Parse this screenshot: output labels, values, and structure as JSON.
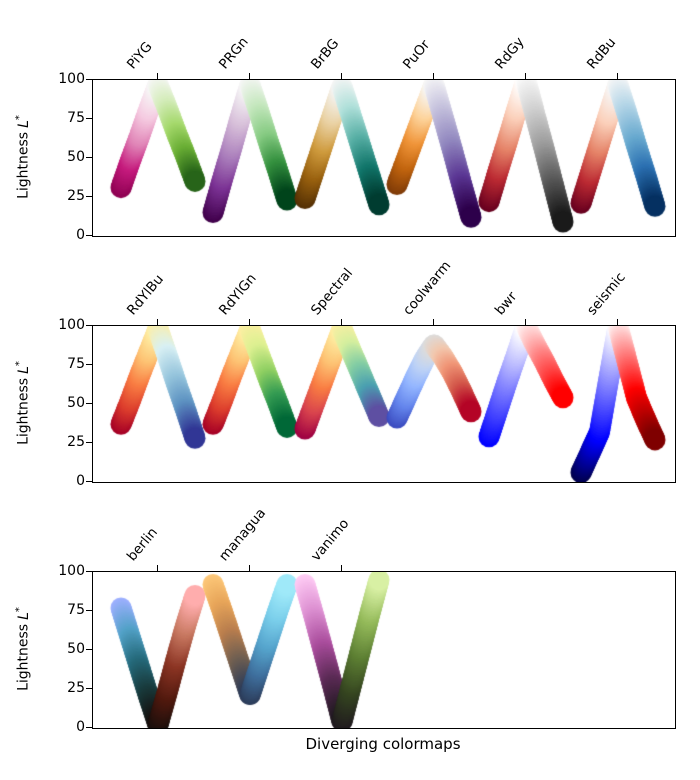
{
  "chart_data": {
    "type": "scatter",
    "title": "",
    "xlabel": "Diverging colormaps",
    "ylabel": "Lightness L*",
    "ylabel_parts": {
      "prefix": "Lightness",
      "symbol": "L",
      "sup": "*"
    },
    "ylim": [
      0,
      100
    ],
    "yticks": [
      0,
      25,
      50,
      75,
      100
    ],
    "grid": false,
    "legend": "none",
    "subplots": [
      {
        "colormaps": [
          {
            "name": "PiYG",
            "lightness_profile": [
              31,
              48,
              64,
              81,
              97,
              82,
              66,
              51,
              35
            ],
            "colors": [
              "#8e0152",
              "#c51b7d",
              "#e084b7",
              "#f5cbe1",
              "#f7f7f7",
              "#d6edbd",
              "#a5d96c",
              "#6aae35",
              "#276419"
            ]
          },
          {
            "name": "PRGn",
            "lightness_profile": [
              15,
              36,
              56,
              77,
              97,
              79,
              60,
              42,
              23
            ],
            "colors": [
              "#40004b",
              "#7b3294",
              "#ab7fbc",
              "#d8c0da",
              "#f7f7f7",
              "#c7e8c0",
              "#88cc84",
              "#35913f",
              "#00441b"
            ]
          },
          {
            "name": "BrBG",
            "lightness_profile": [
              24,
              42,
              60,
              78,
              96,
              77,
              58,
              39,
              20
            ],
            "colors": [
              "#543005",
              "#99610f",
              "#cf9b3e",
              "#ead2a4",
              "#f5f5f5",
              "#b0e0da",
              "#59b0a6",
              "#12766b",
              "#003c30"
            ]
          },
          {
            "name": "PuOr",
            "lightness_profile": [
              33,
              49,
              65,
              81,
              97,
              76,
              55,
              33,
              12
            ],
            "colors": [
              "#7f3b08",
              "#c2650f",
              "#f0953a",
              "#fdd39a",
              "#f7f7f7",
              "#c3bfdc",
              "#9187bf",
              "#5b3794",
              "#2d004b"
            ]
          },
          {
            "name": "RdGy",
            "lightness_profile": [
              22,
              42,
              61,
              81,
              100,
              77,
              55,
              32,
              9
            ],
            "colors": [
              "#67001f",
              "#bb2a33",
              "#e58368",
              "#fbd0ba",
              "#ffffff",
              "#d3d3d3",
              "#a0a0a0",
              "#5c5c5c",
              "#1a1a1a"
            ]
          },
          {
            "name": "RdBu",
            "lightness_profile": [
              21,
              40,
              59,
              78,
              97,
              78,
              58,
              39,
              19
            ],
            "colors": [
              "#67001f",
              "#bb2a33",
              "#e58368",
              "#fbd0ba",
              "#f7f7f7",
              "#b3d5e7",
              "#6aabd0",
              "#2c71b2",
              "#053061"
            ]
          }
        ]
      },
      {
        "colormaps": [
          {
            "name": "RdYlBu",
            "lightness_profile": [
              37,
              52,
              68,
              83,
              98,
              81,
              63,
              46,
              28
            ],
            "colors": [
              "#a50026",
              "#dc3d2d",
              "#f97d43",
              "#fdc374",
              "#feefa5",
              "#d8f0f4",
              "#97c6dd",
              "#5e93c2",
              "#313695"
            ]
          },
          {
            "name": "RdYlGn",
            "lightness_profile": [
              37,
              52,
              68,
              83,
              98,
              82,
              66,
              51,
              35
            ],
            "colors": [
              "#a50026",
              "#dc3d2d",
              "#f97d43",
              "#fdc374",
              "#feefa4",
              "#dcf091",
              "#90d063",
              "#359c53",
              "#006837"
            ]
          },
          {
            "name": "Spectral",
            "lightness_profile": [
              34,
              50,
              66,
              82,
              98,
              84,
              70,
              56,
              42
            ],
            "colors": [
              "#9e0142",
              "#d8434e",
              "#f97d43",
              "#fdc374",
              "#feefa4",
              "#d5ef9f",
              "#84cea4",
              "#4ba0b1",
              "#5e4fa2"
            ]
          },
          {
            "name": "coolwarm",
            "lightness_profile": [
              41,
              54,
              67,
              79,
              88,
              80,
              70,
              58,
              45
            ],
            "colors": [
              "#3b4cc0",
              "#6485ec",
              "#93b5ff",
              "#c0d4f5",
              "#dddcdb",
              "#f2c9b0",
              "#f19879",
              "#d55c4d",
              "#b40426"
            ]
          },
          {
            "name": "bwr",
            "lightness_profile": [
              29,
              47,
              65,
              82,
              100,
              88,
              77,
              65,
              54
            ],
            "colors": [
              "#0000ff",
              "#4040ff",
              "#8080ff",
              "#c0c0ff",
              "#ffffff",
              "#ffc0c0",
              "#ff8080",
              "#ff4040",
              "#ff0000"
            ]
          },
          {
            "name": "seismic",
            "lightness_profile": [
              6,
              19,
              32,
              66,
              100,
              77,
              54,
              40,
              27
            ],
            "colors": [
              "#00004c",
              "#0000a6",
              "#0000ff",
              "#7f7fff",
              "#ffffff",
              "#ff7f7f",
              "#ff0000",
              "#bf0000",
              "#7f0000"
            ]
          }
        ]
      },
      {
        "colormaps": [
          {
            "name": "berlin",
            "lightness_profile": [
              77,
              58,
              39,
              20,
              2,
              23,
              45,
              66,
              85
            ],
            "colors": [
              "#9eb0ff",
              "#53a2c8",
              "#266b7c",
              "#193a3c",
              "#150f0d",
              "#4f190e",
              "#8c3524",
              "#c97a63",
              "#ffadad"
            ]
          },
          {
            "name": "managua",
            "lightness_profile": [
              92,
              75,
              57,
              39,
              21,
              39,
              57,
              75,
              92
            ],
            "colors": [
              "#fdc87a",
              "#e8a65a",
              "#b97e4e",
              "#6f5f52",
              "#2c3b58",
              "#3f6f9d",
              "#56a5cd",
              "#7bcfeb",
              "#9fe9f9"
            ]
          },
          {
            "name": "vanimo",
            "lightness_profile": [
              92,
              71,
              49,
              27,
              4,
              27,
              50,
              73,
              95
            ],
            "colors": [
              "#ffcdf5",
              "#de92d3",
              "#aa4d9d",
              "#5c2b56",
              "#1f191f",
              "#354420",
              "#5c7e33",
              "#94ba5a",
              "#d8f0a4"
            ]
          }
        ]
      }
    ]
  }
}
